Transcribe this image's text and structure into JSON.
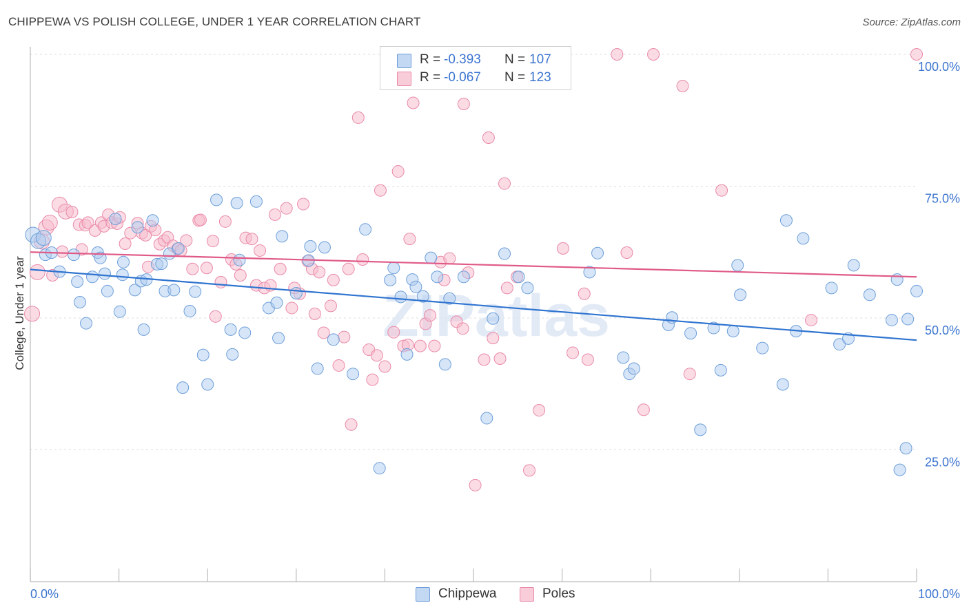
{
  "title": "CHIPPEWA VS POLISH COLLEGE, UNDER 1 YEAR CORRELATION CHART",
  "source": "Source: ZipAtlas.com",
  "watermark": "ZIPatlas",
  "legend": {
    "rows": [
      {
        "r_label": "R =",
        "r_value": "-0.393",
        "n_label": "N =",
        "n_value": "107"
      },
      {
        "r_label": "R =",
        "r_value": "-0.067",
        "n_label": "N =",
        "n_value": "123"
      }
    ]
  },
  "colors": {
    "chippewa_fill": "#aecbf0",
    "chippewa_stroke": "#6e9fd9",
    "chippewa_line": "#2f74d0",
    "poles_fill": "#f7b9cc",
    "poles_stroke": "#e98aa8",
    "poles_line": "#e05a88",
    "axis_label": "#3b74cf",
    "grid": "#dddddd"
  },
  "chart_data": {
    "type": "scatter",
    "title": "CHIPPEWA VS POLISH COLLEGE, UNDER 1 YEAR CORRELATION CHART",
    "xlabel": "",
    "ylabel": "College, Under 1 year",
    "xlim": [
      0,
      100
    ],
    "ylim": [
      0,
      100
    ],
    "x_tick_labels": [
      "0.0%",
      "100.0%"
    ],
    "y_tick_labels": [
      {
        "value": 100,
        "label": "100.0%"
      },
      {
        "value": 75,
        "label": "75.0%"
      },
      {
        "value": 50,
        "label": "50.0%"
      },
      {
        "value": 25,
        "label": "25.0%"
      }
    ],
    "grid": true,
    "legend_position": "bottom",
    "series": [
      {
        "name": "Chippewa",
        "r": -0.393,
        "n": 107,
        "trend": {
          "x": [
            0,
            100
          ],
          "y": [
            59.2,
            45.8
          ]
        },
        "points": [
          [
            0.3,
            65.8
          ],
          [
            0.9,
            64.6
          ],
          [
            1.5,
            65.2
          ],
          [
            1.7,
            62.0
          ],
          [
            2.4,
            62.4
          ],
          [
            3.3,
            58.8
          ],
          [
            4.9,
            62.0
          ],
          [
            5.3,
            56.9
          ],
          [
            5.6,
            53.0
          ],
          [
            6.3,
            49.0
          ],
          [
            7.0,
            57.8
          ],
          [
            7.6,
            62.4
          ],
          [
            7.9,
            61.4
          ],
          [
            8.4,
            58.4
          ],
          [
            8.7,
            55.1
          ],
          [
            9.6,
            68.8
          ],
          [
            10.1,
            51.2
          ],
          [
            10.4,
            58.2
          ],
          [
            10.5,
            60.6
          ],
          [
            11.8,
            55.3
          ],
          [
            12.1,
            67.2
          ],
          [
            12.5,
            57.0
          ],
          [
            12.8,
            47.8
          ],
          [
            13.1,
            57.3
          ],
          [
            13.8,
            68.5
          ],
          [
            14.3,
            60.2
          ],
          [
            14.8,
            60.3
          ],
          [
            15.2,
            55.1
          ],
          [
            15.7,
            62.2
          ],
          [
            16.2,
            55.3
          ],
          [
            16.7,
            63.2
          ],
          [
            17.2,
            36.8
          ],
          [
            18.0,
            51.3
          ],
          [
            18.6,
            55.0
          ],
          [
            19.5,
            43.0
          ],
          [
            20.0,
            37.4
          ],
          [
            21.0,
            72.4
          ],
          [
            22.6,
            47.8
          ],
          [
            22.8,
            43.1
          ],
          [
            23.3,
            71.8
          ],
          [
            23.6,
            61.0
          ],
          [
            24.2,
            47.2
          ],
          [
            25.5,
            72.1
          ],
          [
            26.9,
            51.9
          ],
          [
            27.8,
            52.9
          ],
          [
            28.0,
            46.2
          ],
          [
            28.4,
            65.5
          ],
          [
            30.0,
            54.7
          ],
          [
            31.4,
            60.9
          ],
          [
            31.6,
            63.6
          ],
          [
            32.4,
            40.4
          ],
          [
            33.2,
            63.4
          ],
          [
            34.2,
            45.9
          ],
          [
            36.4,
            39.4
          ],
          [
            37.8,
            66.8
          ],
          [
            39.4,
            21.5
          ],
          [
            40.6,
            57.2
          ],
          [
            41.0,
            59.5
          ],
          [
            41.8,
            54.0
          ],
          [
            42.5,
            43.1
          ],
          [
            43.1,
            57.3
          ],
          [
            43.5,
            55.9
          ],
          [
            44.3,
            54.1
          ],
          [
            45.2,
            61.4
          ],
          [
            45.9,
            57.8
          ],
          [
            46.8,
            41.2
          ],
          [
            47.3,
            53.7
          ],
          [
            48.9,
            57.8
          ],
          [
            51.5,
            31.0
          ],
          [
            52.2,
            49.9
          ],
          [
            53.5,
            62.2
          ],
          [
            55.1,
            57.8
          ],
          [
            56.1,
            55.7
          ],
          [
            63.1,
            58.7
          ],
          [
            64.0,
            62.3
          ],
          [
            66.9,
            42.5
          ],
          [
            67.6,
            39.4
          ],
          [
            68.1,
            40.4
          ],
          [
            72.0,
            48.7
          ],
          [
            72.4,
            50.1
          ],
          [
            74.5,
            47.1
          ],
          [
            75.6,
            28.8
          ],
          [
            77.1,
            48.1
          ],
          [
            77.9,
            40.1
          ],
          [
            79.3,
            47.5
          ],
          [
            79.8,
            60.0
          ],
          [
            80.1,
            54.4
          ],
          [
            82.6,
            44.3
          ],
          [
            84.9,
            37.4
          ],
          [
            85.3,
            68.5
          ],
          [
            86.4,
            47.5
          ],
          [
            87.2,
            65.1
          ],
          [
            90.4,
            55.7
          ],
          [
            91.3,
            45.0
          ],
          [
            92.3,
            46.1
          ],
          [
            92.9,
            60.0
          ],
          [
            94.7,
            54.4
          ],
          [
            97.2,
            49.6
          ],
          [
            97.8,
            57.3
          ],
          [
            98.1,
            21.2
          ],
          [
            98.8,
            25.3
          ],
          [
            99.0,
            49.8
          ],
          [
            100.0,
            55.1
          ]
        ]
      },
      {
        "name": "Poles",
        "r": -0.067,
        "n": 123,
        "trend": {
          "x": [
            0,
            100
          ],
          "y": [
            62.5,
            57.8
          ]
        },
        "points": [
          [
            0.2,
            50.8
          ],
          [
            0.8,
            58.7
          ],
          [
            1.3,
            64.5
          ],
          [
            1.8,
            67.2
          ],
          [
            2.2,
            68.1
          ],
          [
            3.3,
            71.5
          ],
          [
            4.0,
            70.2
          ],
          [
            4.7,
            70.1
          ],
          [
            5.5,
            67.7
          ],
          [
            6.2,
            67.6
          ],
          [
            6.5,
            68.1
          ],
          [
            7.3,
            66.6
          ],
          [
            8.0,
            68.1
          ],
          [
            8.3,
            67.4
          ],
          [
            8.8,
            69.6
          ],
          [
            9.2,
            68.1
          ],
          [
            9.8,
            67.9
          ],
          [
            10.1,
            69.1
          ],
          [
            10.7,
            64.1
          ],
          [
            11.3,
            66.1
          ],
          [
            12.1,
            68.0
          ],
          [
            12.6,
            66.1
          ],
          [
            13.0,
            65.7
          ],
          [
            13.6,
            67.4
          ],
          [
            14.1,
            66.7
          ],
          [
            14.6,
            64.0
          ],
          [
            15.1,
            64.7
          ],
          [
            15.5,
            65.3
          ],
          [
            16.1,
            63.7
          ],
          [
            16.6,
            63.1
          ],
          [
            17.0,
            62.8
          ],
          [
            17.6,
            64.7
          ],
          [
            18.3,
            59.3
          ],
          [
            19.0,
            68.5
          ],
          [
            19.2,
            68.6
          ],
          [
            19.9,
            59.5
          ],
          [
            20.6,
            64.6
          ],
          [
            20.9,
            50.3
          ],
          [
            21.5,
            56.8
          ],
          [
            22.0,
            68.3
          ],
          [
            22.7,
            61.1
          ],
          [
            23.2,
            60.2
          ],
          [
            23.7,
            58.1
          ],
          [
            24.3,
            65.2
          ],
          [
            25.0,
            65.0
          ],
          [
            25.5,
            56.2
          ],
          [
            25.9,
            62.8
          ],
          [
            26.4,
            55.7
          ],
          [
            27.1,
            56.2
          ],
          [
            27.6,
            69.6
          ],
          [
            28.2,
            59.3
          ],
          [
            28.9,
            70.8
          ],
          [
            29.5,
            51.9
          ],
          [
            29.8,
            55.7
          ],
          [
            30.4,
            54.6
          ],
          [
            30.8,
            71.6
          ],
          [
            31.3,
            60.8
          ],
          [
            31.8,
            59.3
          ],
          [
            32.1,
            50.8
          ],
          [
            32.6,
            58.7
          ],
          [
            33.1,
            47.2
          ],
          [
            33.9,
            52.3
          ],
          [
            34.2,
            57.2
          ],
          [
            34.8,
            41.0
          ],
          [
            35.4,
            46.4
          ],
          [
            35.9,
            59.3
          ],
          [
            36.2,
            29.8
          ],
          [
            37.0,
            88.0
          ],
          [
            37.5,
            61.1
          ],
          [
            38.2,
            44.0
          ],
          [
            38.6,
            38.3
          ],
          [
            39.1,
            42.9
          ],
          [
            39.5,
            74.2
          ],
          [
            40.0,
            40.8
          ],
          [
            41.0,
            47.3
          ],
          [
            41.5,
            77.8
          ],
          [
            42.1,
            44.7
          ],
          [
            42.6,
            44.9
          ],
          [
            42.8,
            65.0
          ],
          [
            43.2,
            90.8
          ],
          [
            44.0,
            44.7
          ],
          [
            44.6,
            48.9
          ],
          [
            45.1,
            50.5
          ],
          [
            45.6,
            44.7
          ],
          [
            46.3,
            60.6
          ],
          [
            46.7,
            57.2
          ],
          [
            47.3,
            61.3
          ],
          [
            48.1,
            49.3
          ],
          [
            48.8,
            48.0
          ],
          [
            48.9,
            90.6
          ],
          [
            49.4,
            58.6
          ],
          [
            50.2,
            18.3
          ],
          [
            51.2,
            42.1
          ],
          [
            51.7,
            84.2
          ],
          [
            52.2,
            46.2
          ],
          [
            53.0,
            42.3
          ],
          [
            53.5,
            75.5
          ],
          [
            53.8,
            55.7
          ],
          [
            54.9,
            57.8
          ],
          [
            56.3,
            21.1
          ],
          [
            57.4,
            32.5
          ],
          [
            58.2,
            100.0
          ],
          [
            60.1,
            63.2
          ],
          [
            61.2,
            43.4
          ],
          [
            62.5,
            54.6
          ],
          [
            62.9,
            42.1
          ],
          [
            66.2,
            100.0
          ],
          [
            67.3,
            62.4
          ],
          [
            69.2,
            32.6
          ],
          [
            70.3,
            100.0
          ],
          [
            73.6,
            94.0
          ],
          [
            74.4,
            39.4
          ],
          [
            78.0,
            74.2
          ],
          [
            88.1,
            49.6
          ],
          [
            100.0,
            100.0
          ],
          [
            2.5,
            58.1
          ],
          [
            3.6,
            62.6
          ],
          [
            5.8,
            63.0
          ],
          [
            13.3,
            59.7
          ]
        ]
      }
    ]
  },
  "bottom_legend": [
    {
      "label": "Chippewa"
    },
    {
      "label": "Poles"
    }
  ]
}
